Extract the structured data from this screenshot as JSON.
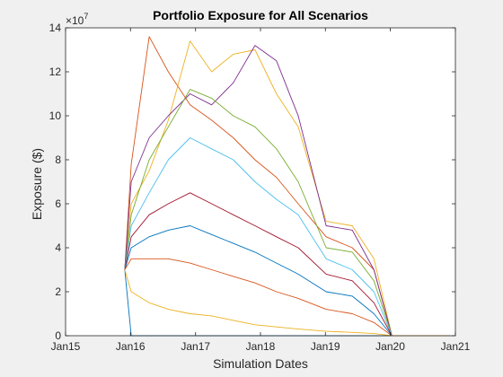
{
  "chart_data": {
    "type": "line",
    "title": "Portfolio Exposure for All Scenarios",
    "xlabel": "Simulation Dates",
    "ylabel": "Exposure ($)",
    "y_multiplier_label": "×10",
    "y_multiplier_exponent": "7",
    "xlim": [
      "2015-01-01",
      "2021-01-01"
    ],
    "ylim": [
      0,
      140000000
    ],
    "x_ticks": [
      {
        "date": "2015-01-01",
        "label": "Jan15"
      },
      {
        "date": "2016-01-01",
        "label": "Jan16"
      },
      {
        "date": "2017-01-01",
        "label": "Jan17"
      },
      {
        "date": "2018-01-01",
        "label": "Jan18"
      },
      {
        "date": "2019-01-01",
        "label": "Jan19"
      },
      {
        "date": "2020-01-01",
        "label": "Jan20"
      },
      {
        "date": "2021-01-01",
        "label": "Jan21"
      }
    ],
    "y_ticks": [
      {
        "value": 0,
        "label": "0"
      },
      {
        "value": 20000000,
        "label": "2"
      },
      {
        "value": 40000000,
        "label": "4"
      },
      {
        "value": 60000000,
        "label": "6"
      },
      {
        "value": 80000000,
        "label": "8"
      },
      {
        "value": 100000000,
        "label": "10"
      },
      {
        "value": 120000000,
        "label": "12"
      },
      {
        "value": 140000000,
        "label": "14"
      }
    ],
    "grid": false,
    "legend": "none",
    "colors": [
      "#0072bd",
      "#d95319",
      "#edb120",
      "#7e2f8e",
      "#77ac30",
      "#4dbeee",
      "#a2142f"
    ],
    "series": [
      {
        "x": [
          "2015-11-30",
          "2016-01-05",
          "2016-04-15",
          "2016-08-01",
          "2016-12-01",
          "2017-04-01",
          "2017-08-01",
          "2017-12-01",
          "2018-04-01",
          "2018-08-01",
          "2019-01-05",
          "2019-06-01",
          "2019-10-01",
          "2020-01-10",
          "2020-11-30"
        ],
        "values": [
          30000000,
          0,
          0,
          0,
          0,
          0,
          0,
          0,
          0,
          0,
          0,
          0,
          0,
          0,
          0
        ]
      },
      {
        "x": [
          "2015-11-30",
          "2016-01-05",
          "2016-04-15",
          "2016-08-01",
          "2016-12-01",
          "2017-04-01",
          "2017-08-01",
          "2017-12-01",
          "2018-04-01",
          "2018-08-01",
          "2019-01-05",
          "2019-06-01",
          "2019-10-01",
          "2020-01-10",
          "2020-11-30"
        ],
        "values": [
          30000000,
          78000000,
          136000000,
          120000000,
          105000000,
          98000000,
          90000000,
          80000000,
          72000000,
          60000000,
          45000000,
          40000000,
          30000000,
          0,
          0
        ]
      },
      {
        "x": [
          "2015-11-30",
          "2016-01-05",
          "2016-04-15",
          "2016-08-01",
          "2016-12-01",
          "2017-04-01",
          "2017-08-01",
          "2017-12-01",
          "2018-04-01",
          "2018-08-01",
          "2019-01-05",
          "2019-06-01",
          "2019-10-01",
          "2020-01-10",
          "2020-11-30"
        ],
        "values": [
          30000000,
          60000000,
          75000000,
          98000000,
          134000000,
          120000000,
          128000000,
          130000000,
          110000000,
          95000000,
          52000000,
          50000000,
          35000000,
          0,
          0
        ]
      },
      {
        "x": [
          "2015-11-30",
          "2016-01-05",
          "2016-04-15",
          "2016-08-01",
          "2016-12-01",
          "2017-04-01",
          "2017-08-01",
          "2017-12-01",
          "2018-04-01",
          "2018-08-01",
          "2019-01-05",
          "2019-06-01",
          "2019-10-01",
          "2020-01-10",
          "2020-11-30"
        ],
        "values": [
          30000000,
          70000000,
          90000000,
          100000000,
          110000000,
          105000000,
          115000000,
          132000000,
          125000000,
          100000000,
          50000000,
          48000000,
          30000000,
          0,
          0
        ]
      },
      {
        "x": [
          "2015-11-30",
          "2016-01-05",
          "2016-04-15",
          "2016-08-01",
          "2016-12-01",
          "2017-04-01",
          "2017-08-01",
          "2017-12-01",
          "2018-04-01",
          "2018-08-01",
          "2019-01-05",
          "2019-06-01",
          "2019-10-01",
          "2020-01-10",
          "2020-11-30"
        ],
        "values": [
          30000000,
          55000000,
          80000000,
          95000000,
          112000000,
          108000000,
          100000000,
          95000000,
          85000000,
          70000000,
          40000000,
          38000000,
          25000000,
          0,
          0
        ]
      },
      {
        "x": [
          "2015-11-30",
          "2016-01-05",
          "2016-04-15",
          "2016-08-01",
          "2016-12-01",
          "2017-04-01",
          "2017-08-01",
          "2017-12-01",
          "2018-04-01",
          "2018-08-01",
          "2019-01-05",
          "2019-06-01",
          "2019-10-01",
          "2020-01-10",
          "2020-11-30"
        ],
        "values": [
          30000000,
          50000000,
          65000000,
          80000000,
          90000000,
          85000000,
          80000000,
          70000000,
          62000000,
          55000000,
          35000000,
          30000000,
          20000000,
          0,
          0
        ]
      },
      {
        "x": [
          "2015-11-30",
          "2016-01-05",
          "2016-04-15",
          "2016-08-01",
          "2016-12-01",
          "2017-04-01",
          "2017-08-01",
          "2017-12-01",
          "2018-04-01",
          "2018-08-01",
          "2019-01-05",
          "2019-06-01",
          "2019-10-01",
          "2020-01-10",
          "2020-11-30"
        ],
        "values": [
          30000000,
          45000000,
          55000000,
          60000000,
          65000000,
          60000000,
          55000000,
          50000000,
          45000000,
          40000000,
          28000000,
          25000000,
          15000000,
          0,
          0
        ]
      },
      {
        "x": [
          "2015-11-30",
          "2016-01-05",
          "2016-04-15",
          "2016-08-01",
          "2016-12-01",
          "2017-04-01",
          "2017-08-01",
          "2017-12-01",
          "2018-04-01",
          "2018-08-01",
          "2019-01-05",
          "2019-06-01",
          "2019-10-01",
          "2020-01-10",
          "2020-11-30"
        ],
        "values": [
          30000000,
          40000000,
          45000000,
          48000000,
          50000000,
          46000000,
          42000000,
          38000000,
          33000000,
          28000000,
          20000000,
          18000000,
          10000000,
          0,
          0
        ]
      },
      {
        "x": [
          "2015-11-30",
          "2016-01-05",
          "2016-04-15",
          "2016-08-01",
          "2016-12-01",
          "2017-04-01",
          "2017-08-01",
          "2017-12-01",
          "2018-04-01",
          "2018-08-01",
          "2019-01-05",
          "2019-06-01",
          "2019-10-01",
          "2020-01-10",
          "2020-11-30"
        ],
        "values": [
          30000000,
          35000000,
          35000000,
          35000000,
          33000000,
          30000000,
          27000000,
          24000000,
          20000000,
          17000000,
          12000000,
          10000000,
          6000000,
          0,
          0
        ]
      },
      {
        "x": [
          "2015-11-30",
          "2016-01-05",
          "2016-04-15",
          "2016-08-01",
          "2016-12-01",
          "2017-04-01",
          "2017-08-01",
          "2017-12-01",
          "2018-04-01",
          "2018-08-01",
          "2019-01-05",
          "2019-06-01",
          "2019-10-01",
          "2020-01-10",
          "2020-11-30"
        ],
        "values": [
          30000000,
          20000000,
          15000000,
          12000000,
          10000000,
          9000000,
          7000000,
          5000000,
          4000000,
          3000000,
          2000000,
          1500000,
          1000000,
          0,
          0
        ]
      }
    ]
  }
}
